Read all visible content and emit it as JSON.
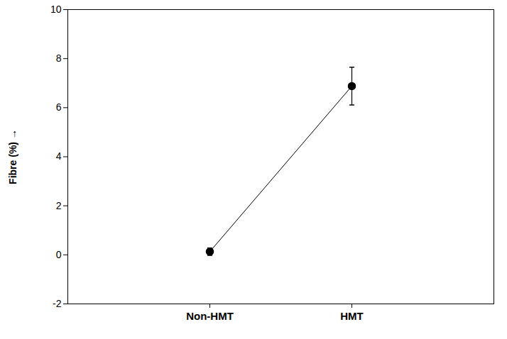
{
  "chart_data": {
    "type": "line",
    "ylabel": "Fibre (%)",
    "categories": [
      "Non-HMT",
      "HMT"
    ],
    "values": [
      0.13,
      6.88
    ],
    "errors": [
      0.15,
      0.77
    ],
    "color": "#000000",
    "marker": "circle",
    "ylim": [
      -2,
      10
    ],
    "yticks": [
      -2,
      0,
      2,
      4,
      6,
      8,
      10
    ],
    "grid": false
  }
}
